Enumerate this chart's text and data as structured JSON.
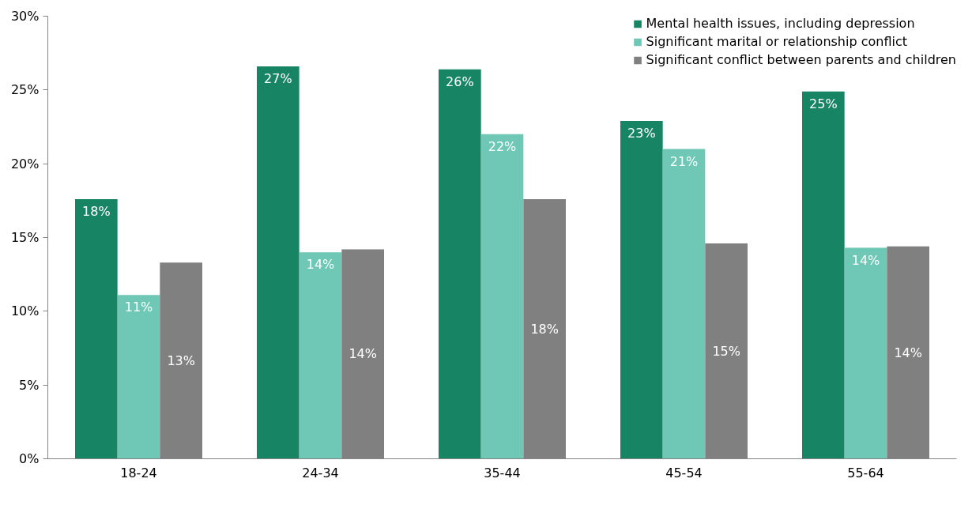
{
  "chart_data": {
    "type": "bar",
    "categories": [
      "18-24",
      "24-34",
      "35-44",
      "45-54",
      "55-64"
    ],
    "series": [
      {
        "name": "Mental health issues, including depression",
        "color": "#178563",
        "values": [
          17.6,
          26.6,
          26.4,
          22.9,
          24.9
        ],
        "value_labels": [
          "18%",
          "27%",
          "26%",
          "23%",
          "25%"
        ]
      },
      {
        "name": "Significant marital or relationship conflict",
        "color": "#6fc7b5",
        "values": [
          11.1,
          14.0,
          22.0,
          21.0,
          14.3
        ],
        "value_labels": [
          "11%",
          "14%",
          "22%",
          "21%",
          "14%"
        ]
      },
      {
        "name": "Significant conflict between parents and children",
        "color": "#808080",
        "values": [
          13.3,
          14.2,
          17.6,
          14.6,
          14.4
        ],
        "value_labels": [
          "13%",
          "14%",
          "18%",
          "15%",
          "14%"
        ]
      }
    ],
    "ylim": [
      0,
      30
    ],
    "yticks": [
      {
        "value": 0,
        "label": "0%"
      },
      {
        "value": 5,
        "label": "5%"
      },
      {
        "value": 10,
        "label": "10%"
      },
      {
        "value": 15,
        "label": "15%"
      },
      {
        "value": 20,
        "label": "20%"
      },
      {
        "value": 25,
        "label": "25%"
      },
      {
        "value": 30,
        "label": "30%"
      }
    ],
    "grid": false,
    "legend": "top right"
  }
}
